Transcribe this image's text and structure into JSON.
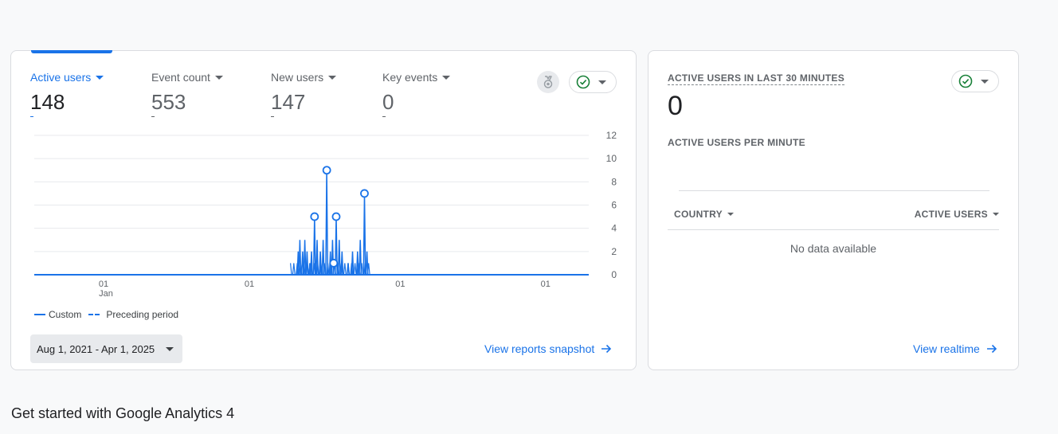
{
  "overview": {
    "metrics": [
      {
        "label": "Active users",
        "value": "148",
        "active": true
      },
      {
        "label": "Event count",
        "value": "553",
        "active": false
      },
      {
        "label": "New users",
        "value": "147",
        "active": false
      },
      {
        "label": "Key events",
        "value": "0",
        "active": false
      }
    ],
    "legend": {
      "current": "Custom",
      "previous": "Preceding period"
    },
    "date_range": "Aug 1, 2021 - Apr 1, 2025",
    "snapshot_link": "View reports snapshot",
    "icons": {
      "award": "award-icon",
      "status": "check-circle-icon",
      "arrow": "arrow-forward-icon"
    }
  },
  "chart_data": {
    "type": "line",
    "series": [
      {
        "name": "Custom",
        "style": "solid",
        "color": "#1a73e8"
      }
    ],
    "ylim": [
      0,
      12
    ],
    "yticks": [
      "0",
      "2",
      "4",
      "6",
      "8",
      "10",
      "12"
    ],
    "xticks": [
      {
        "t": 0.125,
        "label": "01",
        "sub": "Jan"
      },
      {
        "t": 0.388,
        "label": "01",
        "sub": ""
      },
      {
        "t": 0.66,
        "label": "01",
        "sub": ""
      },
      {
        "t": 0.922,
        "label": "01",
        "sub": ""
      }
    ],
    "x_range": [
      0,
      1
    ],
    "active_region": [
      0.462,
      0.605
    ],
    "spikes": [
      {
        "t": 0.476,
        "v": 2
      },
      {
        "t": 0.479,
        "v": 3
      },
      {
        "t": 0.484,
        "v": 2
      },
      {
        "t": 0.488,
        "v": 3
      },
      {
        "t": 0.492,
        "v": 2
      },
      {
        "t": 0.497,
        "v": 1
      },
      {
        "t": 0.5,
        "v": 2
      },
      {
        "t": 0.5055,
        "v": 5
      },
      {
        "t": 0.51,
        "v": 3
      },
      {
        "t": 0.516,
        "v": 2
      },
      {
        "t": 0.521,
        "v": 3
      },
      {
        "t": 0.5275,
        "v": 9
      },
      {
        "t": 0.534,
        "v": 2
      },
      {
        "t": 0.538,
        "v": 3
      },
      {
        "t": 0.5445,
        "v": 5
      },
      {
        "t": 0.55,
        "v": 3
      },
      {
        "t": 0.555,
        "v": 2
      },
      {
        "t": 0.566,
        "v": 1
      },
      {
        "t": 0.574,
        "v": 2
      },
      {
        "t": 0.583,
        "v": 2
      },
      {
        "t": 0.588,
        "v": 3
      },
      {
        "t": 0.5955,
        "v": 7
      },
      {
        "t": 0.6,
        "v": 2
      }
    ],
    "markers": [
      {
        "t": 0.5055,
        "v": 5
      },
      {
        "t": 0.5275,
        "v": 9
      },
      {
        "t": 0.5445,
        "v": 5
      },
      {
        "t": 0.5955,
        "v": 7
      },
      {
        "t": 0.54,
        "v": 1
      }
    ]
  },
  "realtime": {
    "title": "ACTIVE USERS IN LAST 30 MINUTES",
    "value": "0",
    "per_minute": "ACTIVE USERS PER MINUTE",
    "col_country": "COUNTRY",
    "col_users": "ACTIVE USERS",
    "empty": "No data available",
    "link": "View realtime"
  },
  "section": {
    "title": "Get started with Google Analytics 4"
  },
  "colors": {
    "accent": "#1a73e8",
    "success": "#188038",
    "text": "#202124",
    "muted": "#5f6368",
    "border": "#dadce0"
  }
}
